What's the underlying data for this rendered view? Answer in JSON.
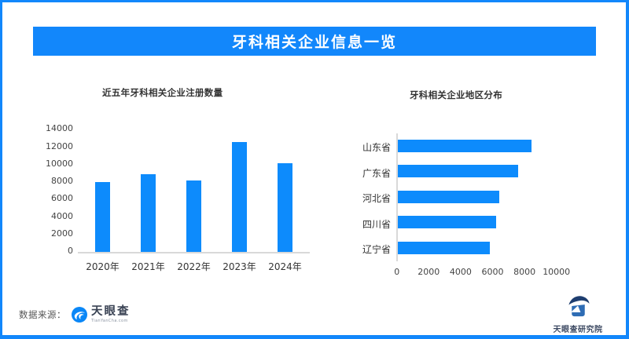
{
  "banner": {
    "title": "牙科相关企业信息一览"
  },
  "colors": {
    "frame_blue": "#1287fb",
    "banner_blue": "#1287fb",
    "bar_blue": "#0d8bfc",
    "axis_gray": "#d9d9d9"
  },
  "chart_data": [
    {
      "type": "bar",
      "orientation": "vertical",
      "title": "近五年牙科相关企业注册数量",
      "categories": [
        "2020年",
        "2021年",
        "2022年",
        "2023年",
        "2024年"
      ],
      "values": [
        8000,
        8900,
        8150,
        12600,
        10150
      ],
      "xlabel": "",
      "ylabel": "",
      "ylim": [
        0,
        14000
      ],
      "yticks": [
        0,
        2000,
        4000,
        6000,
        8000,
        10000,
        12000,
        14000
      ],
      "grid": false,
      "legend": false
    },
    {
      "type": "bar",
      "orientation": "horizontal",
      "title": "牙科相关企业地区分布",
      "categories": [
        "山东省",
        "广东省",
        "河北省",
        "四川省",
        "辽宁省"
      ],
      "values": [
        8400,
        7550,
        6400,
        6200,
        5800
      ],
      "xlabel": "",
      "ylabel": "",
      "xlim": [
        0,
        10000
      ],
      "xticks": [
        0,
        2000,
        4000,
        6000,
        8000,
        10000
      ],
      "grid": false,
      "legend": false
    }
  ],
  "footer": {
    "source_label": "数据来源：",
    "brand_name": "天眼查",
    "brand_url": "TianYanCha.com",
    "institute_name": "天眼查研究院"
  }
}
